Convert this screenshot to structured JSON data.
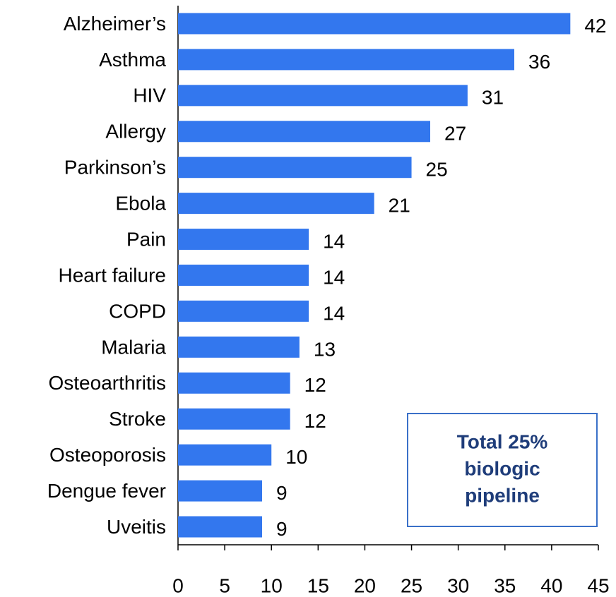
{
  "chart_data": {
    "type": "bar",
    "orientation": "horizontal",
    "categories": [
      "Alzheimer’s",
      "Asthma",
      "HIV",
      "Allergy",
      "Parkinson’s",
      "Ebola",
      "Pain",
      "Heart failure",
      "COPD",
      "Malaria",
      "Osteoarthritis",
      "Stroke",
      "Osteoporosis",
      "Dengue fever",
      "Uveitis"
    ],
    "values": [
      42,
      36,
      31,
      27,
      25,
      21,
      14,
      14,
      14,
      13,
      12,
      12,
      10,
      9,
      9
    ],
    "color": "#3377ee",
    "xlim": [
      0,
      45
    ],
    "xticks": [
      0,
      5,
      10,
      15,
      20,
      25,
      30,
      35,
      40,
      45
    ],
    "annotation": [
      "Total 25%",
      "biologic",
      "pipeline"
    ]
  }
}
